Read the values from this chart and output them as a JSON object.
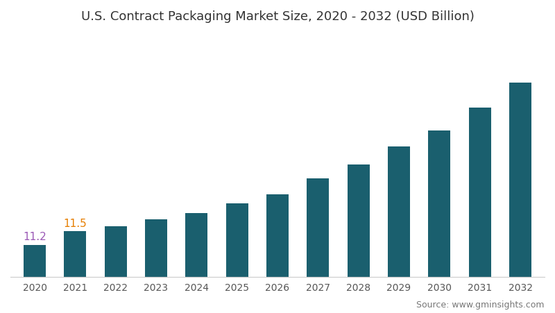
{
  "title": "U.S. Contract Packaging Market Size, 2020 - 2032 (USD Billion)",
  "years": [
    2020,
    2021,
    2022,
    2023,
    2024,
    2025,
    2026,
    2027,
    2028,
    2029,
    2030,
    2031,
    2032
  ],
  "values": [
    11.2,
    11.5,
    11.6,
    11.75,
    11.9,
    12.1,
    12.3,
    12.65,
    12.95,
    13.35,
    13.7,
    14.2,
    14.75
  ],
  "bar_color": "#1a5f6e",
  "label_values": {
    "2020": "11.2",
    "2021": "11.5"
  },
  "label_color_2020": "#9b59b6",
  "label_color_2021": "#e67e00",
  "background_color": "#ffffff",
  "title_color": "#333333",
  "source_text": "Source: www.gminsights.com",
  "title_fontsize": 13,
  "source_fontsize": 9,
  "bar_width": 0.55,
  "ylim_min": 10.5,
  "ylim_max": 15.8
}
